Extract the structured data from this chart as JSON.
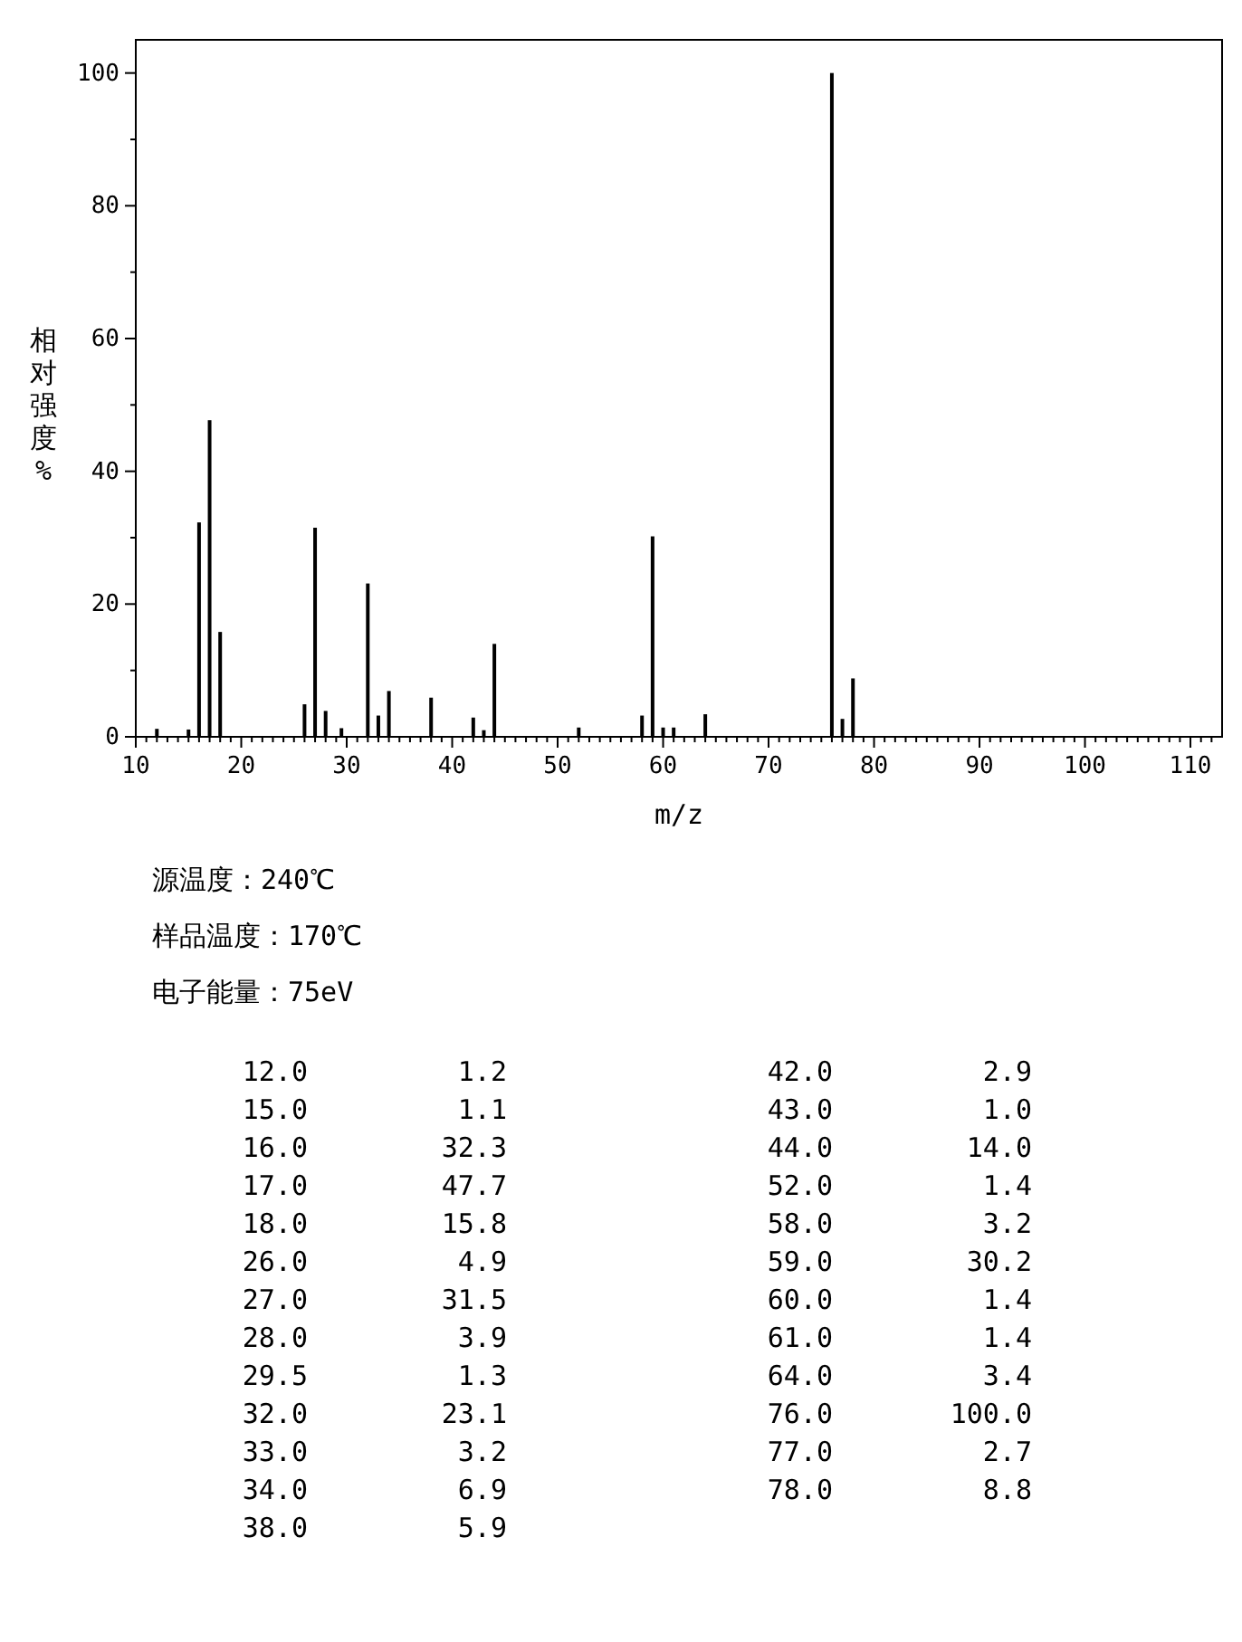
{
  "chart_data": {
    "type": "bar",
    "xlabel": "m/z",
    "ylabel": "相对强度%",
    "x": [
      12.0,
      15.0,
      16.0,
      17.0,
      18.0,
      26.0,
      27.0,
      28.0,
      29.5,
      32.0,
      33.0,
      34.0,
      38.0,
      42.0,
      43.0,
      44.0,
      52.0,
      58.0,
      59.0,
      60.0,
      61.0,
      64.0,
      76.0,
      77.0,
      78.0
    ],
    "values": [
      1.2,
      1.1,
      32.3,
      47.7,
      15.8,
      4.9,
      31.5,
      3.9,
      1.3,
      23.1,
      3.2,
      6.9,
      5.9,
      2.9,
      1.0,
      14.0,
      1.4,
      3.2,
      30.2,
      1.4,
      1.4,
      3.4,
      100.0,
      2.7,
      8.8
    ],
    "color": "#000000",
    "xlim": [
      10,
      113
    ],
    "ylim": [
      0,
      105
    ],
    "xticks": [
      10,
      {
        "value": 11,
        "label": null
      },
      {
        "value": 12,
        "label": null
      },
      {
        "value": 13,
        "label": null
      },
      {
        "value": 14,
        "label": null
      },
      {
        "value": 15,
        "label": null
      },
      {
        "value": 16,
        "label": null
      },
      {
        "value": 17,
        "label": null
      },
      {
        "value": 18,
        "label": null
      },
      {
        "value": 19,
        "label": null
      },
      20,
      {
        "value": 21,
        "label": null
      },
      {
        "value": 22,
        "label": null
      },
      {
        "value": 23,
        "label": null
      },
      {
        "value": 24,
        "label": null
      },
      {
        "value": 25,
        "label": null
      },
      {
        "value": 26,
        "label": null
      },
      {
        "value": 27,
        "label": null
      },
      {
        "value": 28,
        "label": null
      },
      {
        "value": 29,
        "label": null
      },
      30,
      {
        "value": 31,
        "label": null
      },
      {
        "value": 32,
        "label": null
      },
      {
        "value": 33,
        "label": null
      },
      {
        "value": 34,
        "label": null
      },
      {
        "value": 35,
        "label": null
      },
      {
        "value": 36,
        "label": null
      },
      {
        "value": 37,
        "label": null
      },
      {
        "value": 38,
        "label": null
      },
      {
        "value": 39,
        "label": null
      },
      40,
      {
        "value": 41,
        "label": null
      },
      {
        "value": 42,
        "label": null
      },
      {
        "value": 43,
        "label": null
      },
      {
        "value": 44,
        "label": null
      },
      {
        "value": 45,
        "label": null
      },
      {
        "value": 46,
        "label": null
      },
      {
        "value": 47,
        "label": null
      },
      {
        "value": 48,
        "label": null
      },
      {
        "value": 49,
        "label": null
      },
      50,
      {
        "value": 51,
        "label": null
      },
      {
        "value": 52,
        "label": null
      },
      {
        "value": 53,
        "label": null
      },
      {
        "value": 54,
        "label": null
      },
      {
        "value": 55,
        "label": null
      },
      {
        "value": 56,
        "label": null
      },
      {
        "value": 57,
        "label": null
      },
      {
        "value": 58,
        "label": null
      },
      {
        "value": 59,
        "label": null
      },
      60,
      {
        "value": 61,
        "label": null
      },
      {
        "value": 62,
        "label": null
      },
      {
        "value": 63,
        "label": null
      },
      {
        "value": 64,
        "label": null
      },
      {
        "value": 65,
        "label": null
      },
      {
        "value": 66,
        "label": null
      },
      {
        "value": 67,
        "label": null
      },
      {
        "value": 68,
        "label": null
      },
      {
        "value": 69,
        "label": null
      },
      70,
      {
        "value": 71,
        "label": null
      },
      {
        "value": 72,
        "label": null
      },
      {
        "value": 73,
        "label": null
      },
      {
        "value": 74,
        "label": null
      },
      {
        "value": 75,
        "label": null
      },
      {
        "value": 76,
        "label": null
      },
      {
        "value": 77,
        "label": null
      },
      {
        "value": 78,
        "label": null
      },
      {
        "value": 79,
        "label": null
      },
      80,
      {
        "value": 81,
        "label": null
      },
      {
        "value": 82,
        "label": null
      },
      {
        "value": 83,
        "label": null
      },
      {
        "value": 84,
        "label": null
      },
      {
        "value": 85,
        "label": null
      },
      {
        "value": 86,
        "label": null
      },
      {
        "value": 87,
        "label": null
      },
      {
        "value": 88,
        "label": null
      },
      {
        "value": 89,
        "label": null
      },
      90,
      {
        "value": 91,
        "label": null
      },
      {
        "value": 92,
        "label": null
      },
      {
        "value": 93,
        "label": null
      },
      {
        "value": 94,
        "label": null
      },
      {
        "value": 95,
        "label": null
      },
      {
        "value": 96,
        "label": null
      },
      {
        "value": 97,
        "label": null
      },
      {
        "value": 98,
        "label": null
      },
      {
        "value": 99,
        "label": null
      },
      100,
      {
        "value": 101,
        "label": null
      },
      {
        "value": 102,
        "label": null
      },
      {
        "value": 103,
        "label": null
      },
      {
        "value": 104,
        "label": null
      },
      {
        "value": 105,
        "label": null
      },
      {
        "value": 106,
        "label": null
      },
      {
        "value": 107,
        "label": null
      },
      {
        "value": 108,
        "label": null
      },
      {
        "value": 109,
        "label": null
      },
      110,
      {
        "value": 111,
        "label": null
      },
      {
        "value": 112,
        "label": null
      }
    ],
    "yticks": [
      0,
      {
        "value": 10,
        "label": null
      },
      20,
      {
        "value": 30,
        "label": null
      },
      40,
      {
        "value": 50,
        "label": null
      },
      60,
      {
        "value": 70,
        "label": null
      },
      80,
      {
        "value": 90,
        "label": null
      },
      100
    ],
    "annotations": [
      "源温度：240℃",
      "样品温度：170℃",
      "电子能量：75eV",
      "12.0",
      "1.2",
      "15.0",
      "1.1",
      "16.0",
      "32.3",
      "17.0",
      "47.7",
      "18.0",
      "15.8",
      "26.0",
      "4.9",
      "27.0",
      "31.5",
      "28.0",
      "3.9",
      "29.5",
      "1.3",
      "32.0",
      "23.1",
      "33.0",
      "3.2",
      "34.0",
      "6.9",
      "38.0",
      "5.9",
      "42.0",
      "2.9",
      "43.0",
      "1.0",
      "44.0",
      "14.0",
      "52.0",
      "1.4",
      "58.0",
      "3.2",
      "59.0",
      "30.2",
      "60.0",
      "1.4",
      "61.0",
      "1.4",
      "64.0",
      "3.4",
      "76.0",
      "100.0",
      "77.0",
      "2.7",
      "78.0",
      "8.8"
    ],
    "grid": false
  }
}
